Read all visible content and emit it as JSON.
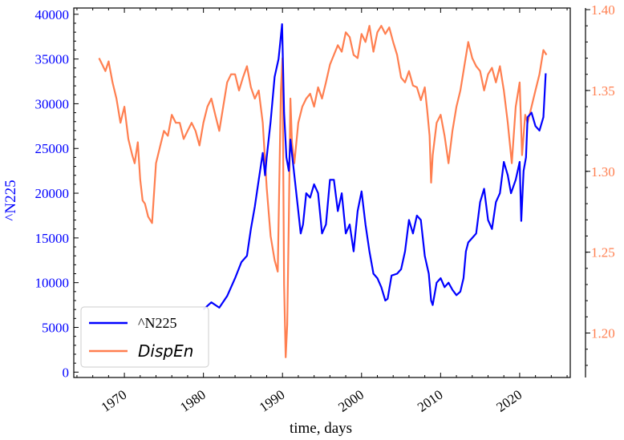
{
  "chart_data": {
    "type": "line",
    "xlabel": "time, days",
    "ylabel_left": "^N225",
    "ylabel_right": "",
    "x_ticks": [
      "1970",
      "1980",
      "1990",
      "2000",
      "2010",
      "2020"
    ],
    "y_left_ticks": [
      "0",
      "5000",
      "10000",
      "15000",
      "20000",
      "25000",
      "30000",
      "35000",
      "40000"
    ],
    "y_right_ticks": [
      "1.20",
      "1.25",
      "1.30",
      "1.35",
      "1.40"
    ],
    "xlim": [
      1963.6,
      2026.4
    ],
    "ylim_left": [
      -600,
      40700
    ],
    "ylim_right": [
      1.1725,
      1.401
    ],
    "grid": false,
    "legend_position": "lower-left",
    "colors": {
      "left_axis": "#0000ff",
      "right_axis": "#ff7f50"
    },
    "series": [
      {
        "name": "^N225",
        "axis": "left",
        "color": "#0000ff",
        "x": [
          1980.0,
          1981.0,
          1982.0,
          1983.0,
          1984.0,
          1984.8,
          1985.5,
          1986.0,
          1986.5,
          1987.0,
          1987.5,
          1987.8,
          1988.0,
          1988.5,
          1989.0,
          1989.5,
          1989.95,
          1990.2,
          1990.5,
          1990.8,
          1991.0,
          1991.5,
          1992.0,
          1992.3,
          1992.6,
          1993.0,
          1993.5,
          1994.0,
          1994.5,
          1995.0,
          1995.5,
          1996.0,
          1996.5,
          1997.0,
          1997.5,
          1998.0,
          1998.5,
          1999.0,
          1999.5,
          2000.0,
          2000.5,
          2001.0,
          2001.5,
          2002.0,
          2002.5,
          2003.0,
          2003.3,
          2003.8,
          2004.5,
          2005.0,
          2005.5,
          2006.0,
          2006.5,
          2007.0,
          2007.5,
          2008.0,
          2008.5,
          2008.8,
          2009.0,
          2009.5,
          2010.0,
          2010.5,
          2011.0,
          2011.5,
          2012.0,
          2012.5,
          2012.9,
          2013.2,
          2013.5,
          2014.0,
          2014.5,
          2015.0,
          2015.5,
          2016.0,
          2016.5,
          2017.0,
          2017.5,
          2018.0,
          2018.5,
          2018.9,
          2019.5,
          2020.0,
          2020.2,
          2020.5,
          2020.8,
          2021.0,
          2021.5,
          2022.0,
          2022.5,
          2023.0,
          2023.3
        ],
        "values": [
          7000,
          7800,
          7200,
          8500,
          10500,
          12300,
          13000,
          16000,
          18500,
          21500,
          24500,
          22000,
          24000,
          28000,
          33000,
          35000,
          38900,
          29000,
          24000,
          22500,
          26000,
          22000,
          18000,
          15500,
          16500,
          20000,
          19500,
          21000,
          20000,
          15500,
          16500,
          21500,
          21500,
          18000,
          20000,
          15500,
          16500,
          13500,
          18000,
          20200,
          16500,
          13500,
          11000,
          10500,
          9500,
          8000,
          8200,
          10800,
          11000,
          11500,
          13500,
          17000,
          15500,
          17500,
          17000,
          13000,
          11000,
          8000,
          7500,
          10000,
          10500,
          9500,
          10000,
          9200,
          8600,
          9000,
          10500,
          13500,
          14500,
          15000,
          15500,
          19000,
          20500,
          17000,
          16000,
          19000,
          20000,
          23500,
          22000,
          20000,
          21500,
          23500,
          16900,
          22500,
          24000,
          28500,
          29000,
          27500,
          27000,
          28500,
          33400
        ]
      },
      {
        "name": "DispEn",
        "axis": "right",
        "color": "#ff7f50",
        "x": [
          1966.8,
          1967.2,
          1967.6,
          1968.0,
          1968.5,
          1969.0,
          1969.5,
          1970.0,
          1970.5,
          1971.0,
          1971.3,
          1971.7,
          1972.0,
          1972.3,
          1972.6,
          1973.0,
          1973.5,
          1974.0,
          1974.5,
          1975.0,
          1975.5,
          1976.0,
          1976.5,
          1977.0,
          1977.5,
          1978.0,
          1978.5,
          1979.0,
          1979.5,
          1980.0,
          1980.5,
          1981.0,
          1981.5,
          1982.0,
          1982.5,
          1983.0,
          1983.5,
          1984.0,
          1984.5,
          1985.0,
          1985.5,
          1986.0,
          1986.5,
          1987.0,
          1987.5,
          1988.0,
          1988.5,
          1989.0,
          1989.4,
          1989.8,
          1990.0,
          1990.2,
          1990.4,
          1990.6,
          1990.8,
          1991.0,
          1991.2,
          1991.5,
          1992.0,
          1992.5,
          1993.0,
          1993.5,
          1994.0,
          1994.5,
          1995.0,
          1995.5,
          1996.0,
          1996.5,
          1997.0,
          1997.5,
          1998.0,
          1998.5,
          1999.0,
          1999.5,
          2000.0,
          2000.5,
          2001.0,
          2001.5,
          2002.0,
          2002.5,
          2003.0,
          2003.5,
          2004.0,
          2004.5,
          2005.0,
          2005.5,
          2006.0,
          2006.5,
          2007.0,
          2007.5,
          2008.0,
          2008.3,
          2008.6,
          2008.8,
          2009.0,
          2009.5,
          2010.0,
          2010.5,
          2011.0,
          2011.5,
          2012.0,
          2012.5,
          2013.0,
          2013.5,
          2014.0,
          2014.5,
          2015.0,
          2015.5,
          2016.0,
          2016.5,
          2017.0,
          2017.5,
          2018.0,
          2018.5,
          2019.0,
          2019.5,
          2020.0,
          2020.3,
          2020.7,
          2021.0,
          2021.5,
          2022.0,
          2022.5,
          2023.0,
          2023.4
        ],
        "values": [
          1.37,
          1.366,
          1.362,
          1.368,
          1.355,
          1.345,
          1.33,
          1.34,
          1.32,
          1.31,
          1.305,
          1.318,
          1.295,
          1.282,
          1.28,
          1.272,
          1.268,
          1.305,
          1.315,
          1.325,
          1.322,
          1.335,
          1.33,
          1.33,
          1.32,
          1.325,
          1.33,
          1.325,
          1.316,
          1.33,
          1.34,
          1.345,
          1.335,
          1.325,
          1.34,
          1.355,
          1.36,
          1.36,
          1.35,
          1.358,
          1.365,
          1.352,
          1.345,
          1.35,
          1.33,
          1.29,
          1.26,
          1.245,
          1.238,
          1.35,
          1.37,
          1.23,
          1.185,
          1.205,
          1.27,
          1.345,
          1.318,
          1.305,
          1.33,
          1.34,
          1.345,
          1.348,
          1.34,
          1.352,
          1.345,
          1.355,
          1.366,
          1.372,
          1.378,
          1.374,
          1.386,
          1.383,
          1.372,
          1.37,
          1.385,
          1.38,
          1.39,
          1.374,
          1.386,
          1.39,
          1.385,
          1.389,
          1.38,
          1.372,
          1.358,
          1.355,
          1.362,
          1.353,
          1.352,
          1.344,
          1.352,
          1.338,
          1.322,
          1.293,
          1.31,
          1.33,
          1.335,
          1.322,
          1.305,
          1.325,
          1.34,
          1.35,
          1.365,
          1.38,
          1.37,
          1.365,
          1.362,
          1.35,
          1.36,
          1.364,
          1.355,
          1.365,
          1.35,
          1.33,
          1.305,
          1.34,
          1.355,
          1.31,
          1.335,
          1.33,
          1.34,
          1.35,
          1.36,
          1.375,
          1.372
        ]
      }
    ]
  }
}
